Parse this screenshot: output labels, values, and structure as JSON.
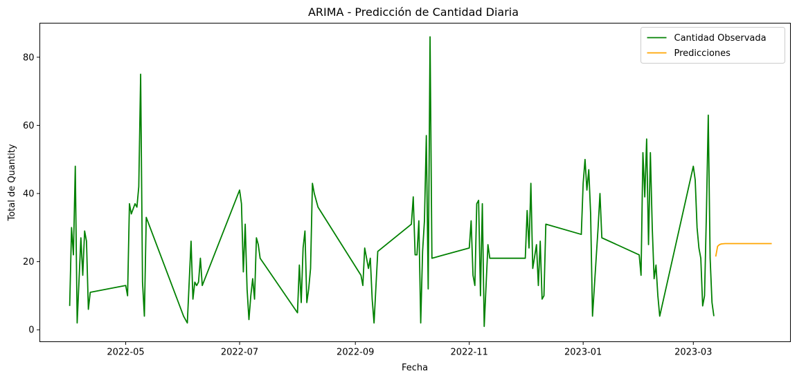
{
  "chart_data": {
    "type": "line",
    "title": "ARIMA - Predicción de Cantidad Diaria",
    "xlabel": "Fecha",
    "ylabel": "Total de Quantity",
    "xlim": [
      "2022-03-16",
      "2023-04-22"
    ],
    "ylim": [
      -3.5,
      90
    ],
    "x_ticks": [
      {
        "date": "2022-05-01",
        "label": "2022-05"
      },
      {
        "date": "2022-07-01",
        "label": "2022-07"
      },
      {
        "date": "2022-09-01",
        "label": "2022-09"
      },
      {
        "date": "2022-11-01",
        "label": "2022-11"
      },
      {
        "date": "2023-01-01",
        "label": "2023-01"
      },
      {
        "date": "2023-03-01",
        "label": "2023-03"
      }
    ],
    "y_ticks": [
      0,
      20,
      40,
      60,
      80
    ],
    "grid": false,
    "legend": {
      "placement": "top-right"
    },
    "series": [
      {
        "name": "Cantidad Observada",
        "color": "#008000",
        "points": [
          [
            "2022-04-01",
            7
          ],
          [
            "2022-04-02",
            30
          ],
          [
            "2022-04-03",
            22
          ],
          [
            "2022-04-04",
            48
          ],
          [
            "2022-04-05",
            2
          ],
          [
            "2022-04-07",
            27
          ],
          [
            "2022-04-08",
            16
          ],
          [
            "2022-04-09",
            29
          ],
          [
            "2022-04-10",
            26
          ],
          [
            "2022-04-11",
            6
          ],
          [
            "2022-04-12",
            11
          ],
          [
            "2022-05-01",
            13
          ],
          [
            "2022-05-02",
            10
          ],
          [
            "2022-05-03",
            37
          ],
          [
            "2022-05-04",
            34
          ],
          [
            "2022-05-06",
            37
          ],
          [
            "2022-05-07",
            36
          ],
          [
            "2022-05-08",
            42
          ],
          [
            "2022-05-09",
            75
          ],
          [
            "2022-05-10",
            14
          ],
          [
            "2022-05-11",
            4
          ],
          [
            "2022-05-12",
            33
          ],
          [
            "2022-06-01",
            4
          ],
          [
            "2022-06-03",
            2
          ],
          [
            "2022-06-05",
            26
          ],
          [
            "2022-06-06",
            9
          ],
          [
            "2022-06-07",
            14
          ],
          [
            "2022-06-08",
            13
          ],
          [
            "2022-06-09",
            14
          ],
          [
            "2022-06-10",
            21
          ],
          [
            "2022-06-11",
            13
          ],
          [
            "2022-07-01",
            41
          ],
          [
            "2022-07-02",
            37
          ],
          [
            "2022-07-03",
            17
          ],
          [
            "2022-07-04",
            31
          ],
          [
            "2022-07-05",
            12
          ],
          [
            "2022-07-06",
            3
          ],
          [
            "2022-07-07",
            10
          ],
          [
            "2022-07-08",
            15
          ],
          [
            "2022-07-09",
            9
          ],
          [
            "2022-07-10",
            27
          ],
          [
            "2022-07-11",
            25
          ],
          [
            "2022-07-12",
            21
          ],
          [
            "2022-08-01",
            5
          ],
          [
            "2022-08-02",
            19
          ],
          [
            "2022-08-03",
            8
          ],
          [
            "2022-08-04",
            24
          ],
          [
            "2022-08-05",
            29
          ],
          [
            "2022-08-06",
            8
          ],
          [
            "2022-08-07",
            12
          ],
          [
            "2022-08-08",
            18
          ],
          [
            "2022-08-09",
            43
          ],
          [
            "2022-08-10",
            40
          ],
          [
            "2022-08-12",
            36
          ],
          [
            "2022-09-04",
            16
          ],
          [
            "2022-09-05",
            13
          ],
          [
            "2022-09-06",
            24
          ],
          [
            "2022-09-07",
            21
          ],
          [
            "2022-09-08",
            18
          ],
          [
            "2022-09-09",
            21
          ],
          [
            "2022-09-10",
            9
          ],
          [
            "2022-09-11",
            2
          ],
          [
            "2022-09-13",
            23
          ],
          [
            "2022-10-01",
            31
          ],
          [
            "2022-10-02",
            39
          ],
          [
            "2022-10-03",
            22
          ],
          [
            "2022-10-04",
            22
          ],
          [
            "2022-10-05",
            32
          ],
          [
            "2022-10-06",
            2
          ],
          [
            "2022-10-07",
            23
          ],
          [
            "2022-10-08",
            32
          ],
          [
            "2022-10-09",
            57
          ],
          [
            "2022-10-10",
            12
          ],
          [
            "2022-10-11",
            86
          ],
          [
            "2022-10-12",
            21
          ],
          [
            "2022-11-01",
            24
          ],
          [
            "2022-11-02",
            32
          ],
          [
            "2022-11-03",
            16
          ],
          [
            "2022-11-04",
            13
          ],
          [
            "2022-11-05",
            37
          ],
          [
            "2022-11-06",
            38
          ],
          [
            "2022-11-07",
            10
          ],
          [
            "2022-11-08",
            37
          ],
          [
            "2022-11-09",
            1
          ],
          [
            "2022-11-10",
            13
          ],
          [
            "2022-11-11",
            25
          ],
          [
            "2022-11-12",
            21
          ],
          [
            "2022-12-01",
            21
          ],
          [
            "2022-12-02",
            35
          ],
          [
            "2022-12-03",
            24
          ],
          [
            "2022-12-04",
            43
          ],
          [
            "2022-12-05",
            18
          ],
          [
            "2022-12-07",
            25
          ],
          [
            "2022-12-08",
            13
          ],
          [
            "2022-12-09",
            26
          ],
          [
            "2022-12-10",
            9
          ],
          [
            "2022-12-11",
            10
          ],
          [
            "2022-12-12",
            31
          ],
          [
            "2022-12-31",
            28
          ],
          [
            "2023-01-01",
            43
          ],
          [
            "2023-01-02",
            50
          ],
          [
            "2023-01-03",
            41
          ],
          [
            "2023-01-04",
            47
          ],
          [
            "2023-01-05",
            34
          ],
          [
            "2023-01-06",
            4
          ],
          [
            "2023-01-09",
            30
          ],
          [
            "2023-01-10",
            40
          ],
          [
            "2023-01-11",
            27
          ],
          [
            "2023-01-31",
            22
          ],
          [
            "2023-02-01",
            16
          ],
          [
            "2023-02-02",
            52
          ],
          [
            "2023-02-03",
            39
          ],
          [
            "2023-02-04",
            56
          ],
          [
            "2023-02-05",
            25
          ],
          [
            "2023-02-06",
            52
          ],
          [
            "2023-02-07",
            30
          ],
          [
            "2023-02-08",
            15
          ],
          [
            "2023-02-09",
            19
          ],
          [
            "2023-02-10",
            10
          ],
          [
            "2023-02-11",
            4
          ],
          [
            "2023-03-01",
            48
          ],
          [
            "2023-03-02",
            44
          ],
          [
            "2023-03-03",
            30
          ],
          [
            "2023-03-04",
            24
          ],
          [
            "2023-03-05",
            21
          ],
          [
            "2023-03-06",
            7
          ],
          [
            "2023-03-07",
            10
          ],
          [
            "2023-03-08",
            34
          ],
          [
            "2023-03-09",
            63
          ],
          [
            "2023-03-10",
            21
          ],
          [
            "2023-03-11",
            8
          ],
          [
            "2023-03-12",
            4
          ]
        ]
      },
      {
        "name": "Predicciones",
        "color": "#FFA500",
        "points": [
          [
            "2023-03-13",
            21.5
          ],
          [
            "2023-03-14",
            24.5
          ],
          [
            "2023-03-15",
            25.0
          ],
          [
            "2023-03-16",
            25.2
          ],
          [
            "2023-03-18",
            25.3
          ],
          [
            "2023-03-25",
            25.3
          ],
          [
            "2023-04-01",
            25.3
          ],
          [
            "2023-04-08",
            25.3
          ],
          [
            "2023-04-12",
            25.3
          ]
        ]
      }
    ]
  }
}
